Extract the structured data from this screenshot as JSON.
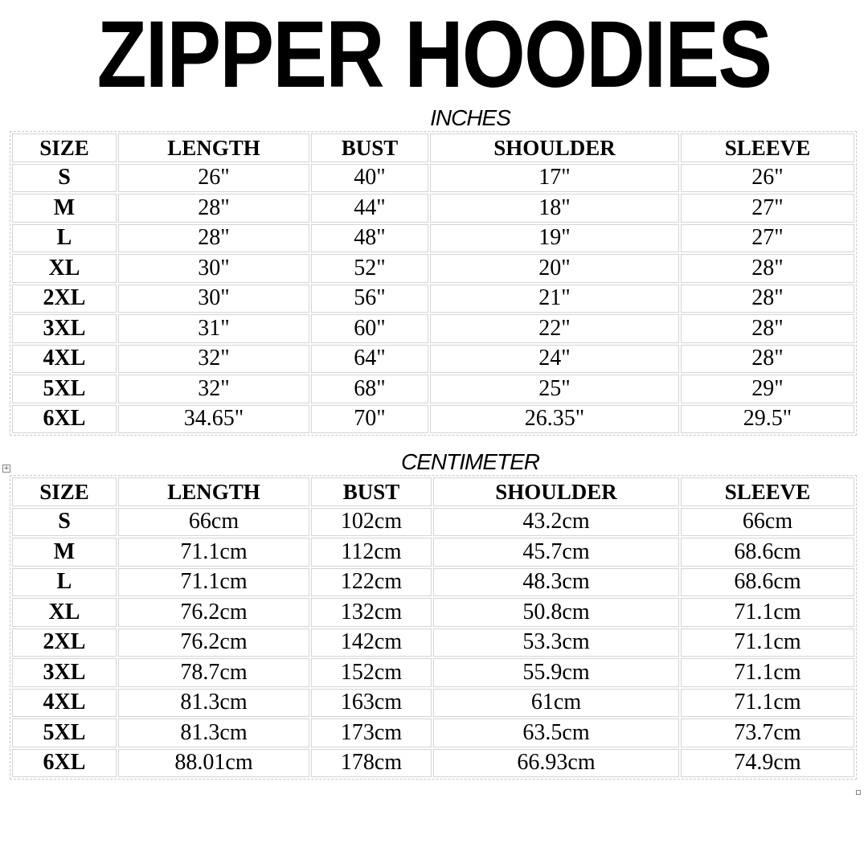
{
  "title": "ZIPPER HOODIES",
  "headers": [
    "SIZE",
    "LENGTH",
    "BUST",
    "SHOULDER",
    "SLEEVE"
  ],
  "inches": {
    "label": "INCHES",
    "rows": [
      [
        "S",
        "26\"",
        "40\"",
        "17\"",
        "26\""
      ],
      [
        "M",
        "28\"",
        "44\"",
        "18\"",
        "27\""
      ],
      [
        "L",
        "28\"",
        "48\"",
        "19\"",
        "27\""
      ],
      [
        "XL",
        "30\"",
        "52\"",
        "20\"",
        "28\""
      ],
      [
        "2XL",
        "30\"",
        "56\"",
        "21\"",
        "28\""
      ],
      [
        "3XL",
        "31\"",
        "60\"",
        "22\"",
        "28\""
      ],
      [
        "4XL",
        "32\"",
        "64\"",
        "24\"",
        "28\""
      ],
      [
        "5XL",
        "32\"",
        "68\"",
        "25\"",
        "29\""
      ],
      [
        "6XL",
        "34.65\"",
        "70\"",
        "26.35\"",
        "29.5\""
      ]
    ]
  },
  "cm": {
    "label": "CENTIMETER",
    "rows": [
      [
        "S",
        "66cm",
        "102cm",
        "43.2cm",
        "66cm"
      ],
      [
        "M",
        "71.1cm",
        "112cm",
        "45.7cm",
        "68.6cm"
      ],
      [
        "L",
        "71.1cm",
        "122cm",
        "48.3cm",
        "68.6cm"
      ],
      [
        "XL",
        "76.2cm",
        "132cm",
        "50.8cm",
        "71.1cm"
      ],
      [
        "2XL",
        "76.2cm",
        "142cm",
        "53.3cm",
        "71.1cm"
      ],
      [
        "3XL",
        "78.7cm",
        "152cm",
        "55.9cm",
        "71.1cm"
      ],
      [
        "4XL",
        "81.3cm",
        "163cm",
        "61cm",
        "71.1cm"
      ],
      [
        "5XL",
        "81.3cm",
        "173cm",
        "63.5cm",
        "73.7cm"
      ],
      [
        "6XL",
        "88.01cm",
        "178cm",
        "66.93cm",
        "74.9cm"
      ]
    ]
  }
}
